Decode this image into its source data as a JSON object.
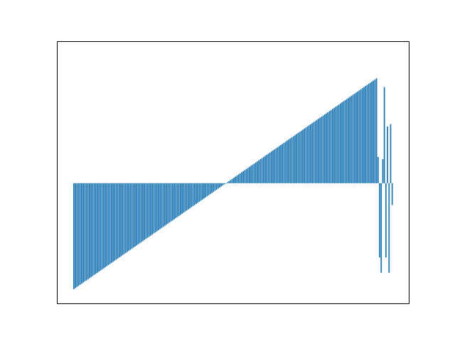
{
  "chart_data": {
    "type": "bar",
    "title": "",
    "xlabel": "",
    "ylabel": "",
    "axes_visible_ticks": false,
    "grid": false,
    "legend": "none",
    "ylim": [
      -1.1,
      1.3
    ],
    "baseline": 0,
    "bar_color": "#1f77b4",
    "series": [
      {
        "values": [
          -0.97,
          -0.96,
          -0.95,
          -0.94,
          -0.93,
          -0.92,
          -0.91,
          -0.9,
          -0.89,
          -0.88,
          -0.87,
          -0.86,
          -0.85,
          -0.84,
          -0.83,
          -0.82,
          -0.81,
          -0.8,
          -0.79,
          -0.78,
          -0.77,
          -0.76,
          -0.75,
          -0.74,
          -0.73,
          -0.72,
          -0.71,
          -0.7,
          -0.69,
          -0.68,
          -0.67,
          -0.66,
          -0.65,
          -0.64,
          -0.63,
          -0.62,
          -0.61,
          -0.6,
          -0.59,
          -0.58,
          -0.57,
          -0.56,
          -0.55,
          -0.54,
          -0.53,
          -0.52,
          -0.51,
          -0.5,
          -0.49,
          -0.48,
          -0.47,
          -0.46,
          -0.45,
          -0.44,
          -0.43,
          -0.42,
          -0.41,
          -0.4,
          -0.39,
          -0.38,
          -0.37,
          -0.36,
          -0.35,
          -0.34,
          -0.33,
          -0.32,
          -0.31,
          -0.3,
          -0.29,
          -0.28,
          -0.27,
          -0.26,
          -0.25,
          -0.24,
          -0.23,
          -0.22,
          -0.21,
          -0.2,
          -0.19,
          -0.18,
          -0.17,
          -0.16,
          -0.15,
          -0.14,
          -0.13,
          -0.12,
          -0.11,
          -0.1,
          -0.09,
          -0.08,
          -0.07,
          -0.06,
          -0.05,
          -0.04,
          -0.03,
          -0.02,
          -0.01,
          0.0,
          0.01,
          0.02,
          0.03,
          0.04,
          0.05,
          0.06,
          0.07,
          0.08,
          0.09,
          0.1,
          0.11,
          0.12,
          0.13,
          0.14,
          0.15,
          0.16,
          0.17,
          0.18,
          0.19,
          0.2,
          0.21,
          0.22,
          0.23,
          0.24,
          0.25,
          0.26,
          0.27,
          0.28,
          0.29,
          0.3,
          0.31,
          0.32,
          0.33,
          0.34,
          0.35,
          0.36,
          0.37,
          0.38,
          0.39,
          0.4,
          0.41,
          0.42,
          0.43,
          0.44,
          0.45,
          0.46,
          0.47,
          0.48,
          0.49,
          0.5,
          0.51,
          0.52,
          0.53,
          0.54,
          0.55,
          0.56,
          0.57,
          0.58,
          0.59,
          0.6,
          0.61,
          0.62,
          0.63,
          0.64,
          0.65,
          0.66,
          0.67,
          0.68,
          0.69,
          0.7,
          0.71,
          0.72,
          0.73,
          0.74,
          0.75,
          0.76,
          0.77,
          0.78,
          0.79,
          0.8,
          0.81,
          0.82,
          0.83,
          0.84,
          0.85,
          0.86,
          0.87,
          0.88,
          0.89,
          0.9,
          0.91,
          0.92,
          0.93,
          0.94,
          0.95,
          0.96,
          0.24,
          -0.68,
          -0.82,
          0.22,
          0.88,
          -0.68,
          0.52,
          -0.82,
          0.54,
          -0.2
        ]
      }
    ]
  }
}
